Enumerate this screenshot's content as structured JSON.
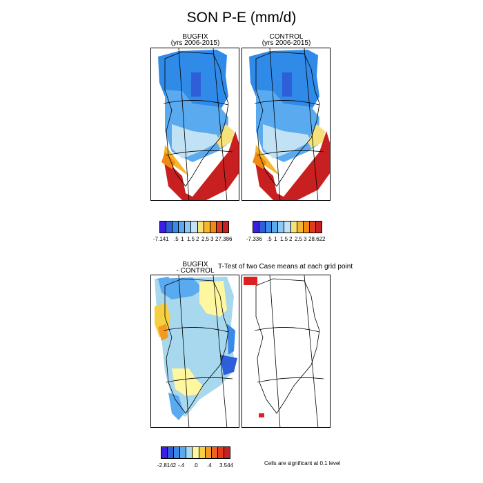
{
  "title": "SON P-E (mm/d)",
  "panels": {
    "bugfix": {
      "title_line1": "BUGFIX",
      "title_line2": "(yrs 2006-2015)"
    },
    "control": {
      "title_line1": "CONTROL",
      "title_line2": "(yrs 2006-2015)"
    },
    "diff": {
      "title_line1": "BUGFIX",
      "title_line2": "- CONTROL"
    },
    "ttest": {
      "title": "T-Test of two Case means at each grid point"
    }
  },
  "colorbars": {
    "bugfix": {
      "labels": [
        "-7.141",
        ".5",
        "1",
        "1.5",
        "2",
        "2.5",
        "3",
        "27.386"
      ],
      "colors": [
        "#3b1fe6",
        "#2f5fd8",
        "#3a8ae8",
        "#5aaaf0",
        "#8cc8f4",
        "#c0e2f4",
        "#f5e27a",
        "#f5b630",
        "#f08a10",
        "#e23a1a",
        "#c82020"
      ]
    },
    "control": {
      "labels": [
        "-7.336",
        ".5",
        "1",
        "1.5",
        "2",
        "2.5",
        "3",
        "28.622"
      ],
      "colors": [
        "#3b1fe6",
        "#2f5fd8",
        "#3a8ae8",
        "#5aaaf0",
        "#8cc8f4",
        "#c0e2f4",
        "#f5e27a",
        "#f5b630",
        "#f08a10",
        "#e23a1a",
        "#c82020"
      ]
    },
    "diff": {
      "labels": [
        "-2.8142",
        "-.4",
        ".0",
        ".4",
        "3.544"
      ],
      "colors": [
        "#3b1fe6",
        "#2f5fd8",
        "#3a8ae8",
        "#5aaaf0",
        "#a8d8ee",
        "#fff6a0",
        "#f5d040",
        "#f59a20",
        "#f06020",
        "#e23a1a",
        "#c82020"
      ]
    }
  },
  "note": "Cells are significant at 0.1 level"
}
